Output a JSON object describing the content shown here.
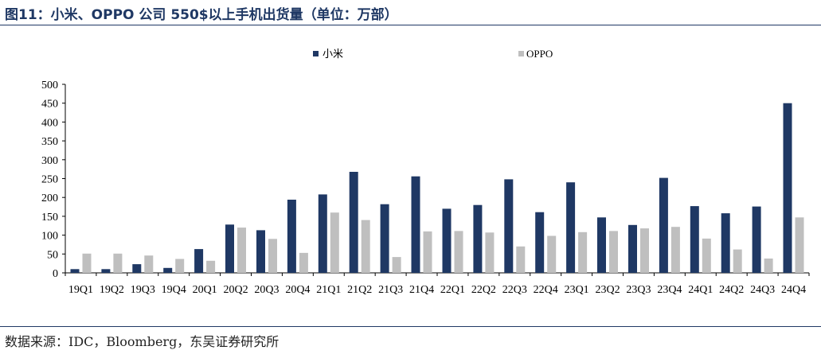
{
  "title": "图11：小米、OPPO 公司 550$以上手机出货量（单位：万部）",
  "source": "数据来源：IDC，Bloomberg，东吴证券研究所",
  "colors": {
    "xiaomi": "#1f3864",
    "oppo": "#bfbfbf",
    "title": "#1f3864",
    "axis": "#000000"
  },
  "chart_data": {
    "type": "bar",
    "title": "",
    "xlabel": "",
    "ylabel": "",
    "ylim": [
      0,
      500
    ],
    "yticks": [
      0,
      50,
      100,
      150,
      200,
      250,
      300,
      350,
      400,
      450,
      500
    ],
    "grid": false,
    "legend": "top-center",
    "categories": [
      "19Q1",
      "19Q2",
      "19Q3",
      "19Q4",
      "20Q1",
      "20Q2",
      "20Q3",
      "20Q4",
      "21Q1",
      "21Q2",
      "21Q3",
      "21Q4",
      "22Q1",
      "22Q2",
      "22Q3",
      "22Q4",
      "23Q1",
      "23Q2",
      "23Q3",
      "23Q4",
      "24Q1",
      "24Q2",
      "24Q3",
      "24Q4"
    ],
    "series": [
      {
        "name": "小米",
        "values": [
          10,
          10,
          23,
          13,
          63,
          128,
          113,
          194,
          208,
          268,
          182,
          256,
          170,
          180,
          248,
          161,
          240,
          147,
          127,
          252,
          177,
          158,
          176,
          450
        ]
      },
      {
        "name": "OPPO",
        "values": [
          51,
          51,
          46,
          37,
          32,
          120,
          90,
          53,
          160,
          140,
          42,
          110,
          111,
          107,
          70,
          98,
          108,
          111,
          118,
          122,
          91,
          62,
          38,
          147
        ]
      }
    ]
  }
}
